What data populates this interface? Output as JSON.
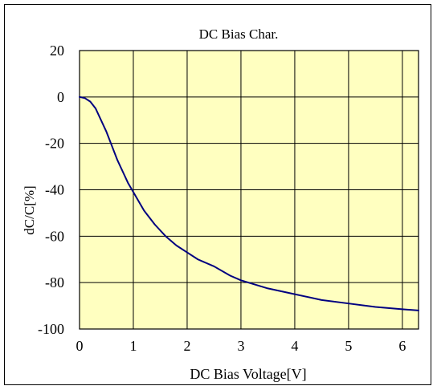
{
  "chart_data": {
    "type": "line",
    "title": "DC Bias Char.",
    "xlabel": "DC Bias Voltage[V]",
    "ylabel": "dC/C[%]",
    "xlim": [
      0,
      6.3
    ],
    "ylim": [
      -100,
      20
    ],
    "xticks": [
      0,
      1,
      2,
      3,
      4,
      5,
      6
    ],
    "xtick_labels": [
      "0",
      "1",
      "2",
      "3",
      "4",
      "5",
      "6"
    ],
    "yticks": [
      20,
      0,
      -20,
      -40,
      -60,
      -80,
      -100
    ],
    "ytick_labels": [
      "20",
      "0",
      "-20",
      "-40",
      "-60",
      "-80",
      "-100"
    ],
    "grid": true,
    "colors": {
      "plot_background": "#ffffc0",
      "line": "#000080",
      "grid": "#000000"
    },
    "series": [
      {
        "x": [
          0,
          0.1,
          0.2,
          0.3,
          0.4,
          0.5,
          0.6,
          0.7,
          0.8,
          0.9,
          1.0,
          1.2,
          1.4,
          1.6,
          1.8,
          2.0,
          2.2,
          2.5,
          2.8,
          3.0,
          3.5,
          4.0,
          4.5,
          5.0,
          5.5,
          6.0,
          6.3
        ],
        "y": [
          0,
          -0.5,
          -2,
          -5,
          -10,
          -15,
          -21,
          -27,
          -32,
          -37,
          -41,
          -49,
          -55,
          -60,
          -64,
          -67,
          -70,
          -73,
          -77,
          -79,
          -82.5,
          -85,
          -87.5,
          -89,
          -90.5,
          -91.5,
          -92
        ]
      }
    ]
  }
}
